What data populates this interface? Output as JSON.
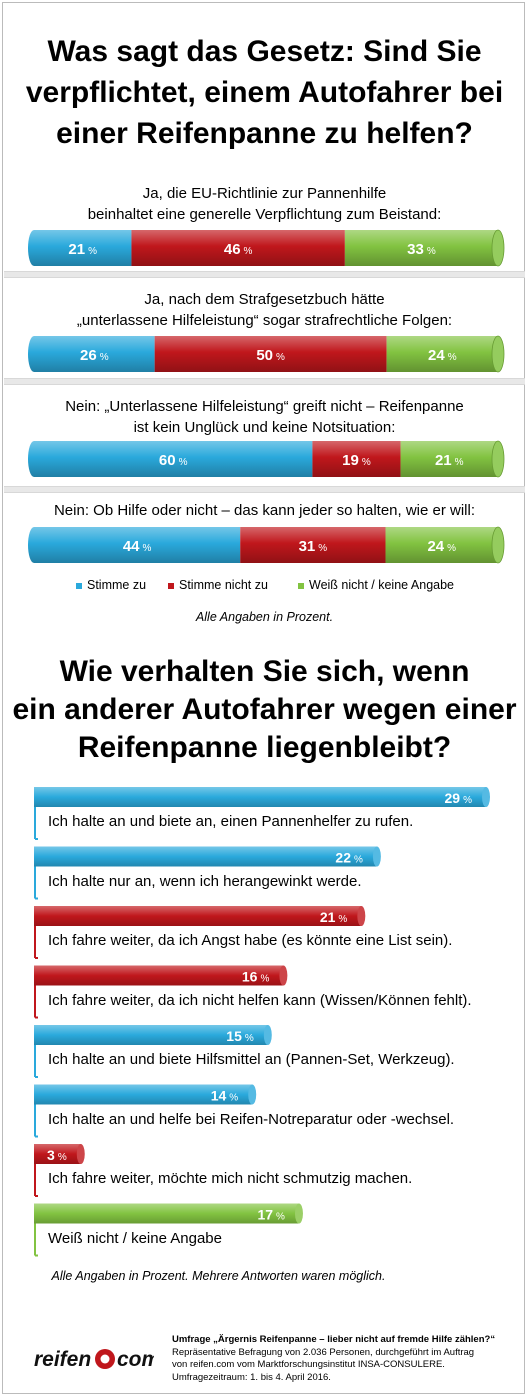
{
  "title1": [
    "Was sagt das Gesetz: Sind Sie",
    "verpflichtet, einem Autofahrer bei",
    "einer Reifenpanne zu helfen?"
  ],
  "colors": {
    "agree": "#2aa9dc",
    "disagree": "#c0171c",
    "unknown": "#82c341"
  },
  "chart_data": [
    {
      "type": "bar",
      "title": "Was sagt das Gesetz: Sind Sie verpflichtet, einem Autofahrer bei einer Reifenpanne zu helfen?",
      "categories": [
        "Ja, die EU-Richtlinie zur Pannenhilfe beinhaltet eine generelle Verpflichtung zum Beistand:",
        "Ja, nach dem Strafgesetzbuch hätte „unterlassene Hilfeleistung“ sogar strafrechtliche Folgen:",
        "Nein: „Unterlassene Hilfeleistung“ greift nicht – Reifenpanne ist kein Unglück und keine Notsituation:",
        "Nein: Ob Hilfe oder nicht – das kann jeder so halten, wie er will:"
      ],
      "question_lines": [
        [
          "Ja, die EU-Richtlinie zur Pannenhilfe",
          "beinhaltet eine generelle Verpflichtung zum Beistand:"
        ],
        [
          "Ja, nach dem Strafgesetzbuch hätte",
          "„unterlassene Hilfeleistung“ sogar strafrechtliche Folgen:"
        ],
        [
          "Nein: „Unterlassene Hilfeleistung“ greift nicht – Reifenpanne",
          "ist kein Unglück und keine Notsituation:"
        ],
        [
          "Nein: Ob Hilfe oder nicht – das kann jeder so halten, wie er will:"
        ]
      ],
      "series": [
        {
          "name": "Stimme zu",
          "values": [
            21,
            26,
            60,
            44
          ]
        },
        {
          "name": "Stimme nicht zu",
          "values": [
            46,
            50,
            19,
            31
          ]
        },
        {
          "name": "Weiß nicht / keine Angabe",
          "values": [
            33,
            24,
            21,
            24
          ]
        }
      ],
      "unit": "%",
      "stacked": true,
      "legend": "bottom",
      "note": "Alle Angaben in Prozent."
    },
    {
      "type": "bar",
      "title": "Wie verhalten Sie sich, wenn ein anderer Autofahrer wegen einer Reifenpanne liegenbleibt?",
      "categories": [
        "Ich halte an und biete an, einen Pannenhelfer zu rufen.",
        "Ich halte nur an, wenn ich herangewinkt werde.",
        "Ich fahre weiter, da ich Angst habe (es könnte eine List sein).",
        "Ich fahre weiter, da ich nicht helfen kann (Wissen/Können fehlt).",
        "Ich halte an und biete Hilfsmittel an (Pannen-Set, Werkzeug).",
        "Ich halte an und helfe bei Reifen-Notreparatur oder -wechsel.",
        "Ich fahre weiter, möchte mich nicht schmutzig machen.",
        "Weiß nicht / keine Angabe"
      ],
      "values": [
        29,
        22,
        21,
        16,
        15,
        14,
        3,
        17
      ],
      "bar_colors": [
        "agree",
        "agree",
        "disagree",
        "disagree",
        "agree",
        "agree",
        "disagree",
        "unknown"
      ],
      "unit": "%",
      "orientation": "horizontal",
      "note": "Alle Angaben in Prozent. Mehrere Antworten waren möglich."
    }
  ],
  "title2": [
    "Wie verhalten Sie sich, wenn",
    "ein anderer Autofahrer wegen einer",
    "Reifenpanne liegenbleibt?"
  ],
  "footer": {
    "heading": "Umfrage „Ärgernis Reifenpanne – lieber nicht auf fremde Hilfe zählen?“",
    "line1": "Repräsentative Befragung von 2.036 Personen, durchgeführt  im Auftrag",
    "line2": "von reifen.com vom Marktforschungsinstitut INSA-CONSULERE.",
    "line3": "Umfragezeitraum: 1. bis 4. April 2016."
  },
  "logo": {
    "left": "reifen",
    "right": "com"
  }
}
